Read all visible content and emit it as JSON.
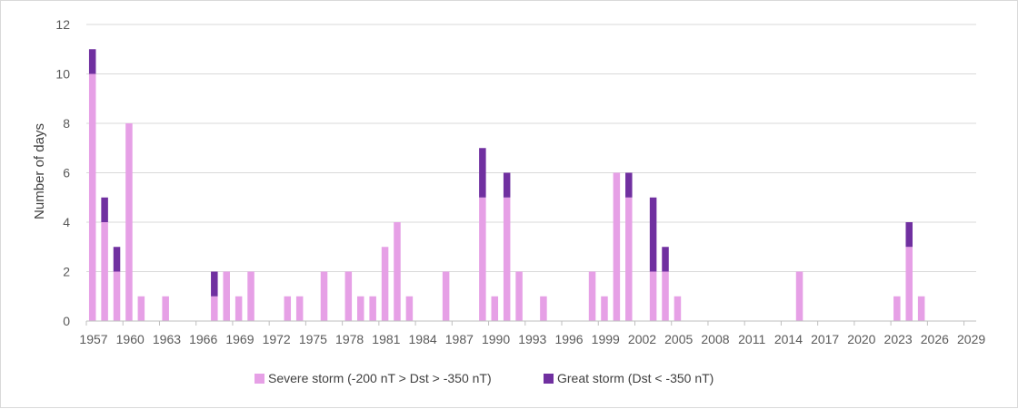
{
  "chart_data": {
    "type": "bar",
    "stacked": true,
    "title": "",
    "xlabel": "",
    "ylabel": "Number of days",
    "ylim": [
      0,
      12
    ],
    "yticks": [
      0,
      2,
      4,
      6,
      8,
      10,
      12
    ],
    "xlim": [
      1957,
      2029
    ],
    "xticks": [
      1957,
      1960,
      1963,
      1966,
      1969,
      1972,
      1975,
      1978,
      1981,
      1984,
      1987,
      1990,
      1993,
      1996,
      1999,
      2002,
      2005,
      2008,
      2011,
      2014,
      2017,
      2020,
      2023,
      2026,
      2029
    ],
    "grid": true,
    "legend_position": "bottom",
    "colors": {
      "severe": "#e6a0e6",
      "great": "#7030a0",
      "grid": "#d9d9d9",
      "axis": "#bfbfbf"
    },
    "x": [
      1957,
      1958,
      1959,
      1960,
      1961,
      1963,
      1967,
      1968,
      1969,
      1970,
      1973,
      1974,
      1976,
      1978,
      1979,
      1980,
      1981,
      1982,
      1983,
      1986,
      1989,
      1990,
      1991,
      1992,
      1994,
      1998,
      1999,
      2000,
      2001,
      2003,
      2004,
      2005,
      2015,
      2023,
      2024,
      2025
    ],
    "series": [
      {
        "name": "Severe storm (-200 nT > Dst > -350 nT)",
        "values": [
          10,
          4,
          2,
          8,
          1,
          1,
          1,
          2,
          1,
          2,
          1,
          1,
          2,
          2,
          1,
          1,
          3,
          4,
          1,
          2,
          5,
          1,
          5,
          2,
          1,
          2,
          1,
          6,
          5,
          2,
          2,
          1,
          2,
          1,
          3,
          1
        ]
      },
      {
        "name": "Great storm (Dst < -350 nT)",
        "values": [
          1,
          1,
          1,
          0,
          0,
          0,
          1,
          0,
          0,
          0,
          0,
          0,
          0,
          0,
          0,
          0,
          0,
          0,
          0,
          0,
          2,
          0,
          1,
          0,
          0,
          0,
          0,
          0,
          1,
          3,
          1,
          0,
          0,
          0,
          1,
          0
        ]
      }
    ]
  }
}
